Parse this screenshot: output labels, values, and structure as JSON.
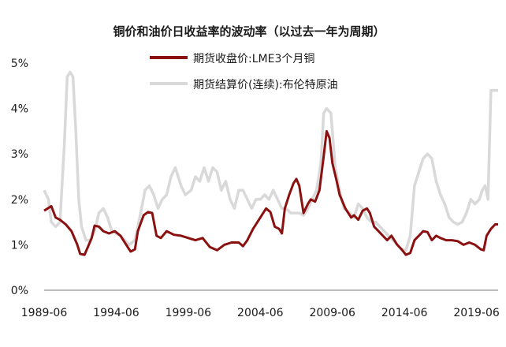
{
  "chart_data": {
    "type": "line",
    "title": "铜价和油价日收益率的波动率（以过去一年为周期）",
    "xlabel": "",
    "ylabel": "",
    "ylim": [
      0,
      5
    ],
    "y_ticks": [
      "0%",
      "1%",
      "2%",
      "3%",
      "4%",
      "5%"
    ],
    "x_ticks": [
      "1989-06",
      "1994-06",
      "1999-06",
      "2004-06",
      "2009-06",
      "2014-06",
      "2019-06"
    ],
    "x_tick_years": [
      1989.5,
      1994.5,
      1999.5,
      2004.5,
      2009.5,
      2014.5,
      2019.5
    ],
    "xlim": [
      1989.5,
      2021.0
    ],
    "grid": false,
    "legend_position": "top",
    "series": [
      {
        "name": "期货收盘价:LME3个月铜",
        "color": "#8b1111",
        "points": [
          [
            1989.5,
            1.75
          ],
          [
            1990.0,
            1.85
          ],
          [
            1990.3,
            1.6
          ],
          [
            1990.6,
            1.55
          ],
          [
            1991.0,
            1.45
          ],
          [
            1991.4,
            1.3
          ],
          [
            1991.8,
            1.0
          ],
          [
            1992.0,
            0.8
          ],
          [
            1992.3,
            0.78
          ],
          [
            1992.6,
            1.0
          ],
          [
            1992.8,
            1.15
          ],
          [
            1993.0,
            1.42
          ],
          [
            1993.3,
            1.4
          ],
          [
            1993.6,
            1.3
          ],
          [
            1994.0,
            1.25
          ],
          [
            1994.4,
            1.3
          ],
          [
            1994.8,
            1.2
          ],
          [
            1995.2,
            1.0
          ],
          [
            1995.5,
            0.85
          ],
          [
            1995.8,
            0.9
          ],
          [
            1996.0,
            1.3
          ],
          [
            1996.4,
            1.65
          ],
          [
            1996.7,
            1.72
          ],
          [
            1997.0,
            1.7
          ],
          [
            1997.3,
            1.2
          ],
          [
            1997.6,
            1.15
          ],
          [
            1998.0,
            1.3
          ],
          [
            1998.5,
            1.22
          ],
          [
            1999.0,
            1.2
          ],
          [
            1999.5,
            1.15
          ],
          [
            2000.0,
            1.1
          ],
          [
            2000.5,
            1.15
          ],
          [
            2001.0,
            0.95
          ],
          [
            2001.5,
            0.88
          ],
          [
            2002.0,
            1.0
          ],
          [
            2002.5,
            1.05
          ],
          [
            2003.0,
            1.05
          ],
          [
            2003.3,
            0.97
          ],
          [
            2003.6,
            1.1
          ],
          [
            2004.0,
            1.35
          ],
          [
            2004.5,
            1.6
          ],
          [
            2004.9,
            1.8
          ],
          [
            2005.2,
            1.72
          ],
          [
            2005.5,
            1.4
          ],
          [
            2005.8,
            1.35
          ],
          [
            2006.0,
            1.25
          ],
          [
            2006.2,
            1.8
          ],
          [
            2006.5,
            2.1
          ],
          [
            2006.8,
            2.35
          ],
          [
            2007.0,
            2.45
          ],
          [
            2007.2,
            2.3
          ],
          [
            2007.5,
            1.7
          ],
          [
            2007.8,
            1.9
          ],
          [
            2008.0,
            2.0
          ],
          [
            2008.3,
            1.95
          ],
          [
            2008.6,
            2.2
          ],
          [
            2008.9,
            2.95
          ],
          [
            2009.1,
            3.5
          ],
          [
            2009.3,
            3.35
          ],
          [
            2009.5,
            2.8
          ],
          [
            2009.8,
            2.4
          ],
          [
            2010.0,
            2.1
          ],
          [
            2010.4,
            1.8
          ],
          [
            2010.8,
            1.6
          ],
          [
            2011.0,
            1.65
          ],
          [
            2011.3,
            1.55
          ],
          [
            2011.6,
            1.75
          ],
          [
            2011.9,
            1.8
          ],
          [
            2012.1,
            1.7
          ],
          [
            2012.4,
            1.4
          ],
          [
            2012.7,
            1.3
          ],
          [
            2013.0,
            1.2
          ],
          [
            2013.3,
            1.1
          ],
          [
            2013.6,
            1.2
          ],
          [
            2014.0,
            1.0
          ],
          [
            2014.3,
            0.9
          ],
          [
            2014.6,
            0.78
          ],
          [
            2014.9,
            0.82
          ],
          [
            2015.2,
            1.1
          ],
          [
            2015.5,
            1.2
          ],
          [
            2015.8,
            1.3
          ],
          [
            2016.1,
            1.28
          ],
          [
            2016.4,
            1.1
          ],
          [
            2016.7,
            1.2
          ],
          [
            2017.0,
            1.15
          ],
          [
            2017.4,
            1.1
          ],
          [
            2017.8,
            1.1
          ],
          [
            2018.2,
            1.08
          ],
          [
            2018.6,
            1.0
          ],
          [
            2019.0,
            1.05
          ],
          [
            2019.4,
            1.0
          ],
          [
            2019.8,
            0.9
          ],
          [
            2020.0,
            0.88
          ],
          [
            2020.2,
            1.2
          ],
          [
            2020.5,
            1.35
          ],
          [
            2020.8,
            1.45
          ],
          [
            2021.0,
            1.45
          ]
        ]
      },
      {
        "name": "期货结算价(连续):布伦特原油",
        "color": "#d9d9d9",
        "points": [
          [
            1989.5,
            2.2
          ],
          [
            1989.8,
            2.0
          ],
          [
            1990.0,
            1.5
          ],
          [
            1990.3,
            1.4
          ],
          [
            1990.6,
            1.5
          ],
          [
            1990.9,
            3.2
          ],
          [
            1991.1,
            4.7
          ],
          [
            1991.3,
            4.8
          ],
          [
            1991.5,
            4.7
          ],
          [
            1991.7,
            3.5
          ],
          [
            1991.9,
            2.0
          ],
          [
            1992.1,
            1.4
          ],
          [
            1992.4,
            1.1
          ],
          [
            1992.7,
            1.1
          ],
          [
            1993.0,
            1.3
          ],
          [
            1993.3,
            1.7
          ],
          [
            1993.6,
            1.8
          ],
          [
            1993.9,
            1.6
          ],
          [
            1994.2,
            1.3
          ],
          [
            1994.5,
            1.25
          ],
          [
            1994.8,
            1.2
          ],
          [
            1995.1,
            1.1
          ],
          [
            1995.4,
            1.0
          ],
          [
            1995.8,
            1.1
          ],
          [
            1996.2,
            1.7
          ],
          [
            1996.5,
            2.2
          ],
          [
            1996.8,
            2.3
          ],
          [
            1997.1,
            2.1
          ],
          [
            1997.4,
            1.8
          ],
          [
            1997.7,
            2.0
          ],
          [
            1998.0,
            2.1
          ],
          [
            1998.3,
            2.5
          ],
          [
            1998.6,
            2.7
          ],
          [
            1998.8,
            2.5
          ],
          [
            1999.0,
            2.3
          ],
          [
            1999.3,
            2.1
          ],
          [
            1999.7,
            2.2
          ],
          [
            2000.0,
            2.5
          ],
          [
            2000.3,
            2.4
          ],
          [
            2000.6,
            2.7
          ],
          [
            2000.9,
            2.4
          ],
          [
            2001.2,
            2.7
          ],
          [
            2001.5,
            2.6
          ],
          [
            2001.8,
            2.2
          ],
          [
            2002.1,
            2.4
          ],
          [
            2002.4,
            2.0
          ],
          [
            2002.7,
            1.8
          ],
          [
            2003.0,
            2.2
          ],
          [
            2003.3,
            2.2
          ],
          [
            2003.6,
            2.0
          ],
          [
            2003.9,
            1.8
          ],
          [
            2004.2,
            2.0
          ],
          [
            2004.5,
            2.0
          ],
          [
            2004.8,
            2.1
          ],
          [
            2005.1,
            2.0
          ],
          [
            2005.4,
            2.2
          ],
          [
            2005.7,
            2.0
          ],
          [
            2006.0,
            1.8
          ],
          [
            2006.3,
            1.8
          ],
          [
            2006.6,
            1.7
          ],
          [
            2006.9,
            1.7
          ],
          [
            2007.2,
            1.7
          ],
          [
            2007.5,
            1.65
          ],
          [
            2007.8,
            1.8
          ],
          [
            2008.1,
            2.0
          ],
          [
            2008.4,
            2.2
          ],
          [
            2008.7,
            2.8
          ],
          [
            2008.9,
            3.9
          ],
          [
            2009.1,
            4.0
          ],
          [
            2009.4,
            3.9
          ],
          [
            2009.7,
            2.7
          ],
          [
            2010.0,
            2.2
          ],
          [
            2010.3,
            1.8
          ],
          [
            2010.7,
            1.7
          ],
          [
            2011.0,
            1.6
          ],
          [
            2011.3,
            1.9
          ],
          [
            2011.6,
            1.8
          ],
          [
            2011.9,
            1.6
          ],
          [
            2012.2,
            1.5
          ],
          [
            2012.5,
            1.5
          ],
          [
            2012.8,
            1.4
          ],
          [
            2013.1,
            1.3
          ],
          [
            2013.4,
            1.2
          ],
          [
            2013.7,
            1.1
          ],
          [
            2014.0,
            1.0
          ],
          [
            2014.3,
            0.9
          ],
          [
            2014.6,
            0.88
          ],
          [
            2014.9,
            1.2
          ],
          [
            2015.2,
            2.3
          ],
          [
            2015.5,
            2.6
          ],
          [
            2015.8,
            2.9
          ],
          [
            2016.1,
            3.0
          ],
          [
            2016.4,
            2.9
          ],
          [
            2016.7,
            2.4
          ],
          [
            2017.0,
            2.1
          ],
          [
            2017.3,
            1.9
          ],
          [
            2017.6,
            1.6
          ],
          [
            2017.9,
            1.5
          ],
          [
            2018.2,
            1.45
          ],
          [
            2018.5,
            1.5
          ],
          [
            2018.8,
            1.7
          ],
          [
            2019.1,
            2.0
          ],
          [
            2019.4,
            1.9
          ],
          [
            2019.7,
            2.0
          ],
          [
            2019.9,
            2.2
          ],
          [
            2020.1,
            2.3
          ],
          [
            2020.3,
            2.0
          ],
          [
            2020.5,
            4.4
          ],
          [
            2020.8,
            4.4
          ],
          [
            2021.0,
            4.4
          ]
        ]
      }
    ]
  }
}
